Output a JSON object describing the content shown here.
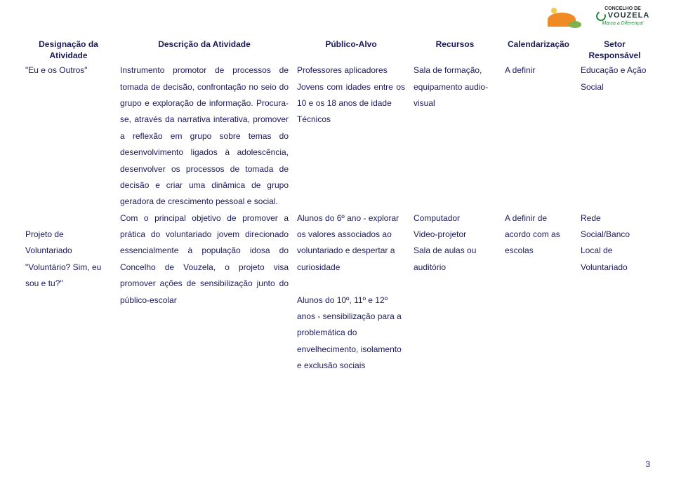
{
  "colors": {
    "text": "#1a1a5c",
    "background": "#ffffff",
    "logo_orange": "#f08a24",
    "logo_yellow": "#f7c948",
    "logo_green": "#7fb24a",
    "logo2_green": "#248a3c"
  },
  "logos": {
    "left_alt": "Sun and hills illustration",
    "right_top": "CONCELHO DE",
    "right_mid": "VOUZELA",
    "right_tag": "Marca a Diferença!"
  },
  "headers": {
    "col1_line1": "Designação da",
    "col1_line2": "Atividade",
    "col2": "Descrição da Atividade",
    "col3": "Público-Alvo",
    "col4": "Recursos",
    "col5": "Calendarização",
    "col6_line1": "Setor",
    "col6_line2": "Responsável"
  },
  "row1": {
    "designacao": "\"Eu e os Outros\"",
    "descricao": "Instrumento promotor de processos de tomada de decisão, confrontação no seio do grupo e exploração de informação. Procura-se, através da narrativa interativa, promover a reflexão em grupo sobre temas do desenvolvimento ligados à adolescência, desenvolver os processos de tomada de decisão e criar uma dinâmica de grupo geradora de crescimento pessoal e social.",
    "publico_p1": "Professores aplicadores",
    "publico_p2": "Jovens com idades entre os 10 e os 18 anos de idade",
    "publico_p3": "Técnicos",
    "recursos": "Sala de formação, equipamento audio-visual",
    "calend": "A definir",
    "setor": "Educação e Ação Social"
  },
  "row2": {
    "designacao_l1": "Projeto de",
    "designacao_l2": "Voluntariado",
    "designacao_l3": "\"Voluntário? Sim, eu",
    "designacao_l4": "sou e tu?\"",
    "descricao": "Com o principal objetivo de promover a prática do voluntariado jovem direcionado essencialmente à população idosa do Concelho de Vouzela, o projeto visa promover ações de sensibilização junto do público-escolar",
    "publico_p1": "Alunos do 6º ano - explorar os valores associados ao voluntariado e despertar a curiosidade",
    "publico_p2": "Alunos do 10º, 11º e 12º anos - sensibilização para a problemática do envelhecimento, isolamento e exclusão sociais",
    "recursos_l1": "Computador",
    "recursos_l2": "Video-projetor",
    "recursos_l3": "Sala de aulas ou auditório",
    "calend": "A definir de acordo com as escolas",
    "setor": "Rede Social/Banco Local de Voluntariado"
  },
  "page_number": "3"
}
